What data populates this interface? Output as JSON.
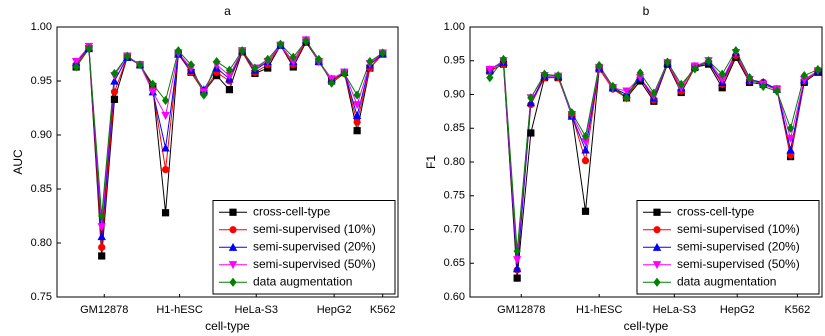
{
  "chart_data": [
    {
      "type": "line",
      "title": "a",
      "x_label": "cell-type",
      "y_label": "AUC",
      "x": [
        0,
        1,
        2,
        3,
        4,
        5,
        6,
        7,
        8,
        9,
        10,
        11,
        12,
        13,
        14,
        15,
        16,
        17,
        18,
        19,
        20,
        21,
        22,
        23,
        24
      ],
      "xlim": [
        -1.5,
        25.2
      ],
      "xticks": [
        {
          "value": 2.2,
          "label": "GM12878"
        },
        {
          "value": 8.1,
          "label": "H1-hESC"
        },
        {
          "value": 14.1,
          "label": "HeLa-S3"
        },
        {
          "value": 20.2,
          "label": "HepG2"
        },
        {
          "value": 24,
          "label": "K562"
        }
      ],
      "ylim": [
        0.75,
        1.0
      ],
      "yticks": [
        0.75,
        {
          "value": 0.8,
          "label": "0.80"
        },
        0.85,
        {
          "value": 0.9,
          "label": "0.90"
        },
        0.95,
        {
          "value": 1.0,
          "label": "1.00"
        }
      ],
      "legend": "lower right",
      "series": [
        {
          "name": "cross-cell-type",
          "color": "#000000",
          "marker": "square",
          "values": [
            0.963,
            0.98,
            0.788,
            0.933,
            0.972,
            0.965,
            0.945,
            0.828,
            0.975,
            0.958,
            0.94,
            0.955,
            0.942,
            0.977,
            0.957,
            0.962,
            0.983,
            0.963,
            0.986,
            0.968,
            0.95,
            0.958,
            0.904,
            0.962,
            0.975
          ]
        },
        {
          "name": "semi-supervised (10%)",
          "color": "#ff0000",
          "marker": "circle",
          "values": [
            0.965,
            0.98,
            0.796,
            0.94,
            0.972,
            0.965,
            0.942,
            0.868,
            0.975,
            0.958,
            0.94,
            0.958,
            0.95,
            0.977,
            0.958,
            0.965,
            0.983,
            0.965,
            0.987,
            0.968,
            0.95,
            0.957,
            0.912,
            0.962,
            0.975
          ]
        },
        {
          "name": "semi-supervised (20%)",
          "color": "#0000ff",
          "marker": "triangle-up",
          "values": [
            0.967,
            0.981,
            0.806,
            0.95,
            0.972,
            0.965,
            0.94,
            0.888,
            0.975,
            0.96,
            0.942,
            0.962,
            0.952,
            0.978,
            0.96,
            0.968,
            0.983,
            0.968,
            0.988,
            0.968,
            0.952,
            0.958,
            0.918,
            0.965,
            0.975
          ]
        },
        {
          "name": "semi-supervised (50%)",
          "color": "#ff00ff",
          "marker": "triangle-down",
          "values": [
            0.968,
            0.982,
            0.815,
            0.955,
            0.973,
            0.965,
            0.94,
            0.918,
            0.976,
            0.962,
            0.94,
            0.965,
            0.955,
            0.978,
            0.962,
            0.968,
            0.983,
            0.968,
            0.988,
            0.968,
            0.952,
            0.958,
            0.928,
            0.966,
            0.976
          ]
        },
        {
          "name": "data augmentation",
          "color": "#008000",
          "marker": "diamond",
          "values": [
            0.963,
            0.98,
            0.825,
            0.957,
            0.973,
            0.965,
            0.947,
            0.932,
            0.978,
            0.965,
            0.937,
            0.968,
            0.96,
            0.978,
            0.962,
            0.97,
            0.984,
            0.972,
            0.987,
            0.97,
            0.948,
            0.957,
            0.937,
            0.968,
            0.976
          ]
        }
      ]
    },
    {
      "type": "line",
      "title": "b",
      "x_label": "cell-type",
      "y_label": "F1",
      "x": [
        0,
        1,
        2,
        3,
        4,
        5,
        6,
        7,
        8,
        9,
        10,
        11,
        12,
        13,
        14,
        15,
        16,
        17,
        18,
        19,
        20,
        21,
        22,
        23,
        24
      ],
      "xlim": [
        -1.45,
        24.3
      ],
      "xticks": [
        {
          "value": 2.3,
          "label": "GM12878"
        },
        {
          "value": 8.0,
          "label": "H1-hESC"
        },
        {
          "value": 13.5,
          "label": "HeLa-S3"
        },
        {
          "value": 18.1,
          "label": "HepG2"
        },
        {
          "value": 22.5,
          "label": "K562"
        }
      ],
      "ylim": [
        0.6,
        1.0
      ],
      "yticks": [
        {
          "value": 0.6,
          "label": "0.60"
        },
        0.65,
        {
          "value": 0.7,
          "label": "0.70"
        },
        0.75,
        {
          "value": 0.8,
          "label": "0.80"
        },
        0.85,
        {
          "value": 0.9,
          "label": "0.90"
        },
        0.95,
        {
          "value": 1.0,
          "label": "1.00"
        }
      ],
      "legend": "lower right",
      "series": [
        {
          "name": "cross-cell-type",
          "color": "#000000",
          "marker": "square",
          "values": [
            0.935,
            0.945,
            0.628,
            0.843,
            0.925,
            0.925,
            0.87,
            0.727,
            0.938,
            0.91,
            0.895,
            0.92,
            0.89,
            0.945,
            0.903,
            0.94,
            0.945,
            0.91,
            0.955,
            0.918,
            0.915,
            0.908,
            0.808,
            0.918,
            0.933
          ]
        },
        {
          "name": "semi-supervised (10%)",
          "color": "#ff0000",
          "marker": "circle",
          "values": [
            0.935,
            0.945,
            0.64,
            0.885,
            0.925,
            0.925,
            0.87,
            0.802,
            0.938,
            0.908,
            0.895,
            0.925,
            0.892,
            0.947,
            0.905,
            0.94,
            0.948,
            0.915,
            0.958,
            0.92,
            0.918,
            0.908,
            0.81,
            0.92,
            0.935
          ]
        },
        {
          "name": "semi-supervised (20%)",
          "color": "#0000ff",
          "marker": "triangle-up",
          "values": [
            0.937,
            0.948,
            0.642,
            0.888,
            0.927,
            0.927,
            0.868,
            0.818,
            0.94,
            0.91,
            0.9,
            0.925,
            0.895,
            0.947,
            0.91,
            0.942,
            0.948,
            0.918,
            0.962,
            0.922,
            0.918,
            0.908,
            0.818,
            0.922,
            0.935
          ]
        },
        {
          "name": "semi-supervised (50%)",
          "color": "#ff00ff",
          "marker": "triangle-down",
          "values": [
            0.937,
            0.95,
            0.655,
            0.895,
            0.928,
            0.927,
            0.87,
            0.83,
            0.94,
            0.91,
            0.905,
            0.925,
            0.898,
            0.947,
            0.91,
            0.942,
            0.95,
            0.922,
            0.962,
            0.922,
            0.915,
            0.907,
            0.835,
            0.922,
            0.935
          ]
        },
        {
          "name": "data augmentation",
          "color": "#008000",
          "marker": "diamond",
          "values": [
            0.925,
            0.952,
            0.668,
            0.895,
            0.93,
            0.928,
            0.873,
            0.838,
            0.943,
            0.912,
            0.895,
            0.932,
            0.902,
            0.948,
            0.915,
            0.938,
            0.95,
            0.93,
            0.965,
            0.925,
            0.912,
            0.905,
            0.85,
            0.928,
            0.937
          ]
        }
      ]
    }
  ]
}
